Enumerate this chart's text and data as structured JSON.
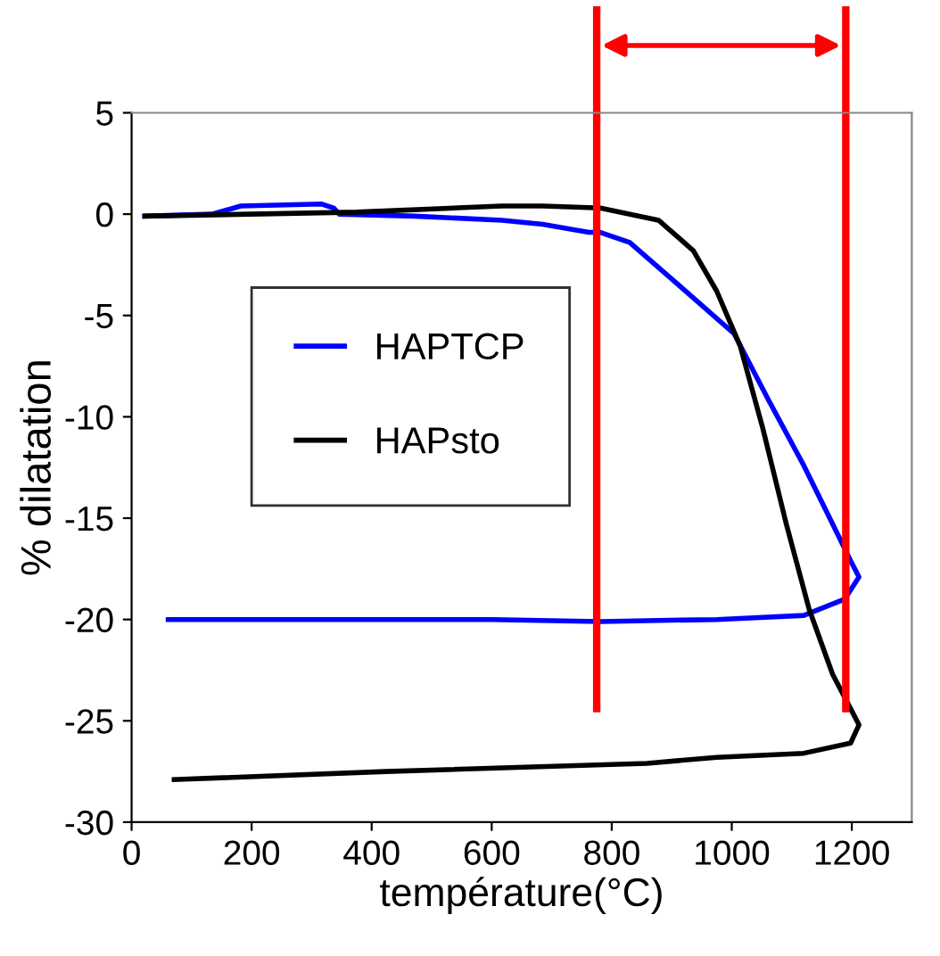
{
  "chart_data": {
    "type": "line",
    "xlabel": "température(°C)",
    "ylabel": "% dilatation",
    "series": [
      {
        "name": "HAPTCP",
        "color": "#0000ff",
        "x": [
          22,
          134,
          182,
          317,
          337,
          346,
          472,
          617,
          685,
          762,
          781,
          830,
          900,
          1004,
          1060,
          1120,
          1160,
          1198,
          1212,
          1188,
          1120,
          975,
          781,
          600,
          400,
          200,
          61
        ],
        "values": [
          -0.1,
          0,
          0.4,
          0.5,
          0.3,
          0,
          -0.1,
          -0.3,
          -0.5,
          -0.9,
          -0.9,
          -1.4,
          -3.2,
          -5.9,
          -9.1,
          -12.4,
          -14.8,
          -17.1,
          -17.9,
          -19.0,
          -19.8,
          -20.0,
          -20.1,
          -20.0,
          -20.0,
          -20.0,
          -20.0
        ]
      },
      {
        "name": "HAPsto",
        "color": "#000000",
        "x": [
          22,
          375,
          617,
          685,
          781,
          878,
          936,
          975,
          1014,
          1052,
          1091,
          1129,
          1168,
          1198,
          1212,
          1198,
          1120,
          975,
          859,
          424,
          71
        ],
        "values": [
          -0.1,
          0.1,
          0.4,
          0.4,
          0.3,
          -0.3,
          -1.8,
          -3.8,
          -6.5,
          -10.6,
          -15.3,
          -19.5,
          -22.7,
          -24.4,
          -25.2,
          -26.1,
          -26.6,
          -26.8,
          -27.1,
          -27.5,
          -27.9
        ]
      }
    ],
    "xlim": [
      0,
      1300
    ],
    "xticks": [
      0,
      200,
      400,
      600,
      800,
      1000,
      1200
    ],
    "ylim": [
      -30,
      5
    ],
    "yticks": [
      -30,
      -25,
      -20,
      -15,
      -10,
      -5,
      0,
      5
    ],
    "ref_lines": [
      {
        "axis": "x",
        "value": 775,
        "color": "#ff0000"
      },
      {
        "axis": "x",
        "value": 1190,
        "color": "#ff0000"
      }
    ],
    "grid": false,
    "legend": "left",
    "marker": "none",
    "line_style": "solid"
  }
}
